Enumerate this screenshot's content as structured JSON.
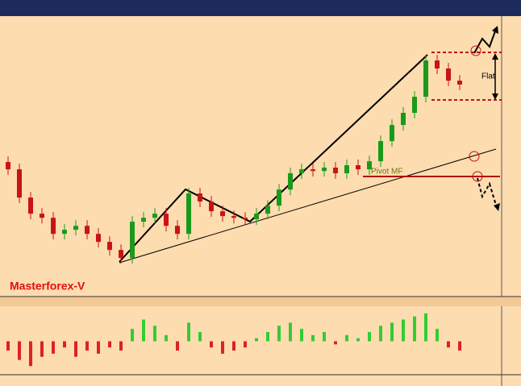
{
  "chart_data": [
    {
      "type": "candlestick",
      "watermark": "Masterforex-V",
      "annotations": [
        "Flat",
        "Pivot MF"
      ],
      "open": [
        1.262,
        1.2581,
        1.243,
        1.2344,
        1.2322,
        1.2236,
        1.2258,
        1.2279,
        1.2236,
        1.2193,
        1.215,
        1.2107,
        1.2301,
        1.2322,
        1.2344,
        1.2279,
        1.2236,
        1.2452,
        1.2409,
        1.2357,
        1.2331,
        1.2322,
        1.2314,
        1.2344,
        1.2387,
        1.2473,
        1.256,
        1.2581,
        1.2572,
        1.259,
        1.256,
        1.2603,
        1.2581,
        1.2624,
        1.2732,
        1.2818,
        1.2883,
        1.2969,
        1.3163,
        1.312,
        1.3055
      ],
      "high": [
        1.265,
        1.2611,
        1.246,
        1.2374,
        1.2352,
        1.2288,
        1.2309,
        1.2309,
        1.2266,
        1.2223,
        1.218,
        1.2331,
        1.2352,
        1.2374,
        1.2374,
        1.2309,
        1.2482,
        1.2482,
        1.2439,
        1.2387,
        1.2361,
        1.2352,
        1.2374,
        1.2417,
        1.2503,
        1.259,
        1.2611,
        1.2611,
        1.262,
        1.262,
        1.2633,
        1.2633,
        1.2654,
        1.2762,
        1.2848,
        1.2913,
        1.2999,
        1.3193,
        1.3193,
        1.315,
        1.3085
      ],
      "low": [
        1.2551,
        1.24,
        1.2314,
        1.2292,
        1.2206,
        1.2206,
        1.2228,
        1.2206,
        1.2163,
        1.212,
        1.2077,
        1.2077,
        1.2271,
        1.2292,
        1.2249,
        1.2206,
        1.2206,
        1.2379,
        1.2327,
        1.2301,
        1.2292,
        1.2284,
        1.2284,
        1.2314,
        1.2357,
        1.2443,
        1.253,
        1.2542,
        1.2542,
        1.253,
        1.253,
        1.2551,
        1.2551,
        1.2594,
        1.2702,
        1.2788,
        1.2853,
        1.2939,
        1.309,
        1.3025,
        1.3004
      ],
      "close": [
        1.2581,
        1.243,
        1.2344,
        1.2322,
        1.2236,
        1.2258,
        1.2279,
        1.2236,
        1.2193,
        1.215,
        1.2107,
        1.2301,
        1.2322,
        1.2344,
        1.2279,
        1.2236,
        1.2452,
        1.2409,
        1.2357,
        1.2331,
        1.2322,
        1.2314,
        1.2344,
        1.2387,
        1.2473,
        1.256,
        1.2581,
        1.2572,
        1.259,
        1.256,
        1.2603,
        1.2581,
        1.2624,
        1.2732,
        1.2818,
        1.2883,
        1.2969,
        1.3163,
        1.312,
        1.3055,
        1.3034
      ],
      "ylim": [
        1.2,
        1.34
      ],
      "up_color": "#1a9a1a",
      "down_color": "#c81414"
    },
    {
      "type": "bar",
      "values": [
        -0.3,
        -0.6,
        -0.8,
        -0.5,
        -0.4,
        -0.2,
        -0.5,
        -0.3,
        -0.4,
        -0.2,
        -0.3,
        0.4,
        0.7,
        0.5,
        0.2,
        -0.3,
        0.6,
        0.3,
        -0.2,
        -0.4,
        -0.3,
        -0.2,
        0.1,
        0.3,
        0.5,
        0.6,
        0.4,
        0.2,
        0.3,
        -0.1,
        0.2,
        0.1,
        0.3,
        0.5,
        0.6,
        0.7,
        0.8,
        0.9,
        0.4,
        -0.2,
        -0.3
      ],
      "ylim": [
        -1,
        1
      ],
      "up_color": "#33cc33",
      "down_color": "#dd2222"
    }
  ]
}
